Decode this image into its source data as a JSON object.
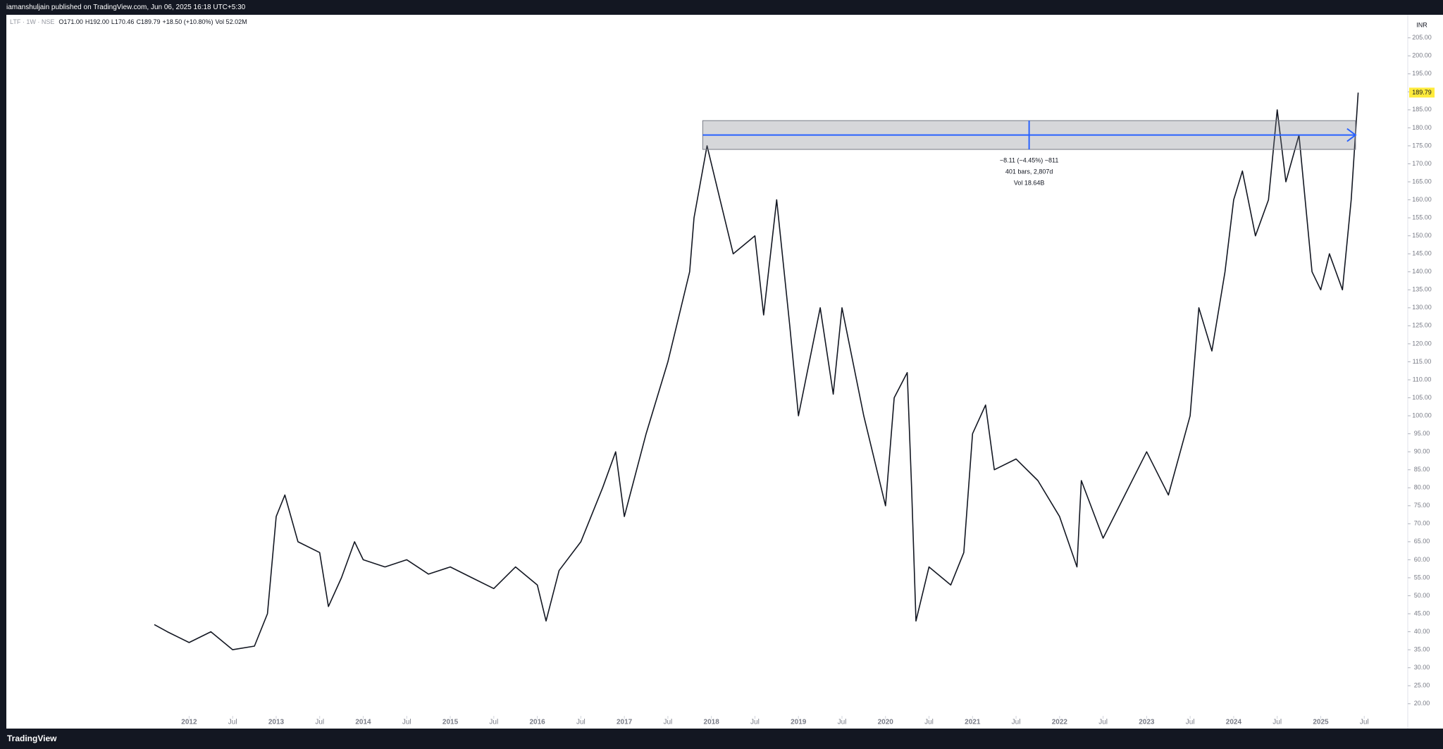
{
  "header": "iamanshuljain published on TradingView.com, Jun 06, 2025 16:18 UTC+5:30",
  "footer": "TradingView",
  "chart_data": {
    "type": "line",
    "currency": "INR",
    "ohlc": [
      "O171.00",
      "H192.00",
      "L170.46",
      "C189.79",
      "+18.50 (+10.80%)"
    ],
    "volume": "Vol 52.02M",
    "last_value_label": "189.79",
    "x": [
      2011.6,
      2011.75,
      2012.0,
      2012.25,
      2012.5,
      2012.75,
      2012.9,
      2013.0,
      2013.1,
      2013.25,
      2013.5,
      2013.6,
      2013.75,
      2013.9,
      2014.0,
      2014.25,
      2014.5,
      2014.75,
      2015.0,
      2015.25,
      2015.5,
      2015.75,
      2016.0,
      2016.1,
      2016.25,
      2016.5,
      2016.75,
      2016.9,
      2017.0,
      2017.25,
      2017.5,
      2017.75,
      2017.8,
      2017.95,
      2018.1,
      2018.25,
      2018.5,
      2018.6,
      2018.75,
      2018.9,
      2019.0,
      2019.25,
      2019.4,
      2019.5,
      2019.75,
      2020.0,
      2020.1,
      2020.25,
      2020.3,
      2020.35,
      2020.5,
      2020.75,
      2020.9,
      2021.0,
      2021.15,
      2021.25,
      2021.5,
      2021.75,
      2022.0,
      2022.2,
      2022.25,
      2022.5,
      2022.75,
      2023.0,
      2023.25,
      2023.5,
      2023.6,
      2023.75,
      2023.9,
      2024.0,
      2024.1,
      2024.25,
      2024.4,
      2024.5,
      2024.6,
      2024.75,
      2024.9,
      2025.0,
      2025.1,
      2025.25,
      2025.35,
      2025.43
    ],
    "series": [
      {
        "name": "LTF · 1W · NSE",
        "color": "#131722",
        "values": [
          42,
          40,
          37,
          40,
          35,
          36,
          45,
          72,
          78,
          65,
          62,
          47,
          55,
          65,
          60,
          58,
          60,
          56,
          58,
          55,
          52,
          58,
          53,
          43,
          57,
          65,
          80,
          90,
          72,
          95,
          115,
          140,
          155,
          175,
          160,
          145,
          150,
          128,
          160,
          125,
          100,
          130,
          106,
          130,
          100,
          75,
          105,
          112,
          80,
          43,
          58,
          53,
          62,
          95,
          103,
          85,
          88,
          82,
          72,
          58,
          82,
          66,
          78,
          90,
          78,
          100,
          130,
          118,
          140,
          160,
          168,
          150,
          160,
          185,
          165,
          178,
          140,
          135,
          145,
          135,
          160,
          189.79
        ]
      }
    ],
    "measure": {
      "x": [
        2017.9,
        2025.4
      ],
      "y": [
        174,
        182
      ],
      "level": 178,
      "labels": [
        "−8.11 (−4.45%) −811",
        "401 bars, 2,807d",
        "Vol 18.64B"
      ]
    },
    "xlim": [
      2009.9,
      2026.0
    ],
    "ylim": [
      13.1,
      211.4
    ],
    "xticks": [
      2012,
      {
        "value": 2012.5,
        "label": "Jul"
      },
      2013,
      {
        "value": 2013.5,
        "label": "Jul"
      },
      2014,
      {
        "value": 2014.5,
        "label": "Jul"
      },
      2015,
      {
        "value": 2015.5,
        "label": "Jul"
      },
      2016,
      {
        "value": 2016.5,
        "label": "Jul"
      },
      2017,
      {
        "value": 2017.5,
        "label": "Jul"
      },
      2018,
      {
        "value": 2018.5,
        "label": "Jul"
      },
      2019,
      {
        "value": 2019.5,
        "label": "Jul"
      },
      2020,
      {
        "value": 2020.5,
        "label": "Jul"
      },
      2021,
      {
        "value": 2021.5,
        "label": "Jul"
      },
      2022,
      {
        "value": 2022.5,
        "label": "Jul"
      },
      2023,
      {
        "value": 2023.5,
        "label": "Jul"
      },
      2024,
      {
        "value": 2024.5,
        "label": "Jul"
      },
      2025,
      {
        "value": 2025.5,
        "label": "Jul"
      }
    ],
    "yticks": [
      {
        "value": 20,
        "label": "20.00"
      },
      {
        "value": 25,
        "label": "25.00"
      },
      {
        "value": 30,
        "label": "30.00"
      },
      {
        "value": 35,
        "label": "35.00"
      },
      {
        "value": 40,
        "label": "40.00"
      },
      {
        "value": 45,
        "label": "45.00"
      },
      {
        "value": 50,
        "label": "50.00"
      },
      {
        "value": 55,
        "label": "55.00"
      },
      {
        "value": 60,
        "label": "60.00"
      },
      {
        "value": 65,
        "label": "65.00"
      },
      {
        "value": 70,
        "label": "70.00"
      },
      {
        "value": 75,
        "label": "75.00"
      },
      {
        "value": 80,
        "label": "80.00"
      },
      {
        "value": 85,
        "label": "85.00"
      },
      {
        "value": 90,
        "label": "90.00"
      },
      {
        "value": 95,
        "label": "95.00"
      },
      {
        "value": 100,
        "label": "100.00"
      },
      {
        "value": 105,
        "label": "105.00"
      },
      {
        "value": 110,
        "label": "110.00"
      },
      {
        "value": 115,
        "label": "115.00"
      },
      {
        "value": 120,
        "label": "120.00"
      },
      {
        "value": 125,
        "label": "125.00"
      },
      {
        "value": 130,
        "label": "130.00"
      },
      {
        "value": 135,
        "label": "135.00"
      },
      {
        "value": 140,
        "label": "140.00"
      },
      {
        "value": 145,
        "label": "145.00"
      },
      {
        "value": 150,
        "label": "150.00"
      },
      {
        "value": 155,
        "label": "155.00"
      },
      {
        "value": 160,
        "label": "160.00"
      },
      {
        "value": 165,
        "label": "165.00"
      },
      {
        "value": 170,
        "label": "170.00"
      },
      {
        "value": 175,
        "label": "175.00"
      },
      {
        "value": 180,
        "label": "180.00"
      },
      {
        "value": 185,
        "label": "185.00"
      },
      {
        "value": 190,
        "label": "190.00"
      },
      {
        "value": 195,
        "label": "195.00"
      },
      {
        "value": 200,
        "label": "200.00"
      },
      {
        "value": 205,
        "label": "205.00"
      }
    ],
    "grid": false
  }
}
